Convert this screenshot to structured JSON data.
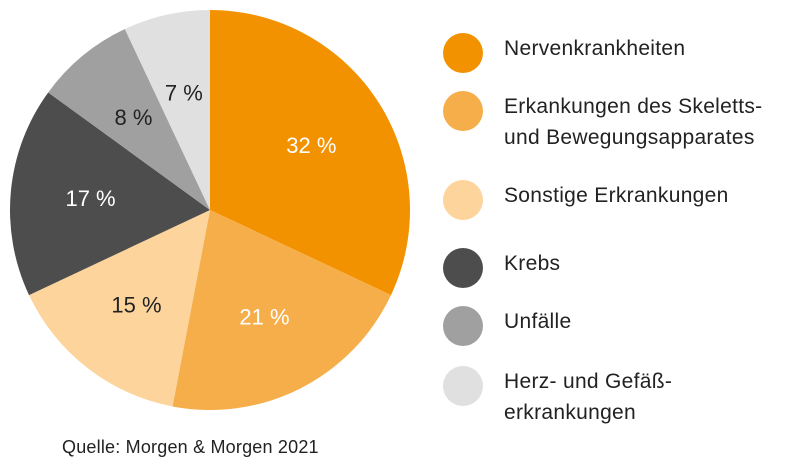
{
  "chart_data": {
    "type": "pie",
    "slices": [
      {
        "label": "Nervenkrankheiten",
        "value": 32,
        "value_label": "32 %",
        "color": "#f39200",
        "label_color": "#ffffff"
      },
      {
        "label": "Erkankungen des Skeletts-\nund Bewegungsapparates",
        "value": 21,
        "value_label": "21 %",
        "color": "#f6ae4b",
        "label_color": "#ffffff"
      },
      {
        "label": "Sonstige Erkrankungen",
        "value": 15,
        "value_label": "15 %",
        "color": "#fcd49c",
        "label_color": "#222222"
      },
      {
        "label": "Krebs",
        "value": 17,
        "value_label": "17 %",
        "color": "#4d4d4d",
        "label_color": "#ffffff"
      },
      {
        "label": "Unfälle",
        "value": 8,
        "value_label": "8 %",
        "color": "#a0a0a0",
        "label_color": "#222222"
      },
      {
        "label": "Herz- und Gefäß-\nerkrankungen",
        "value": 7,
        "value_label": "7 %",
        "color": "#e0e0e0",
        "label_color": "#222222"
      }
    ],
    "start": "12 o'clock",
    "direction": "clockwise",
    "legend_position": "right"
  },
  "source": "Quelle: Morgen & Morgen 2021"
}
